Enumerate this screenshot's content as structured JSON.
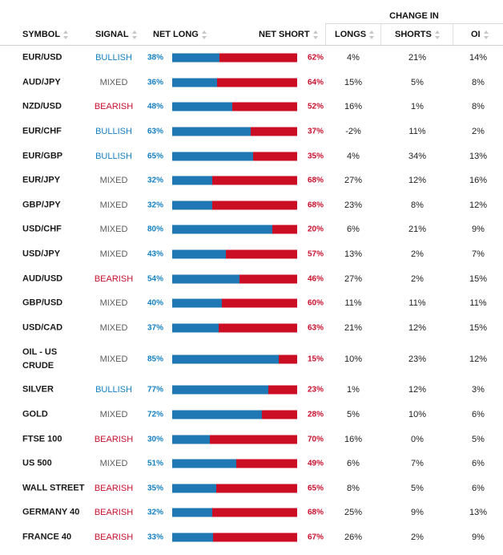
{
  "header": {
    "change_in": "CHANGE IN",
    "columns": {
      "symbol": "SYMBOL",
      "signal": "SIGNAL",
      "net_long": "NET LONG",
      "net_short": "NET SHORT",
      "longs": "LONGS",
      "shorts": "SHORTS",
      "oi": "OI"
    }
  },
  "colors": {
    "bullish": "#1580c2",
    "bearish": "#c8102e",
    "long_bar": "#1f78b4",
    "short_bar": "#cc0e25"
  },
  "rows": [
    {
      "symbol": "EUR/USD",
      "signal": "BULLISH",
      "net_long": "38%",
      "net_short": "62%",
      "long_fraction": 0.38,
      "longs": "4%",
      "shorts": "21%",
      "oi": "14%"
    },
    {
      "symbol": "AUD/JPY",
      "signal": "MIXED",
      "net_long": "36%",
      "net_short": "64%",
      "long_fraction": 0.36,
      "longs": "15%",
      "shorts": "5%",
      "oi": "8%"
    },
    {
      "symbol": "NZD/USD",
      "signal": "BEARISH",
      "net_long": "48%",
      "net_short": "52%",
      "long_fraction": 0.48,
      "longs": "16%",
      "shorts": "1%",
      "oi": "8%"
    },
    {
      "symbol": "EUR/CHF",
      "signal": "BULLISH",
      "net_long": "63%",
      "net_short": "37%",
      "long_fraction": 0.63,
      "longs": "-2%",
      "shorts": "11%",
      "oi": "2%"
    },
    {
      "symbol": "EUR/GBP",
      "signal": "BULLISH",
      "net_long": "65%",
      "net_short": "35%",
      "long_fraction": 0.65,
      "longs": "4%",
      "shorts": "34%",
      "oi": "13%"
    },
    {
      "symbol": "EUR/JPY",
      "signal": "MIXED",
      "net_long": "32%",
      "net_short": "68%",
      "long_fraction": 0.32,
      "longs": "27%",
      "shorts": "12%",
      "oi": "16%"
    },
    {
      "symbol": "GBP/JPY",
      "signal": "MIXED",
      "net_long": "32%",
      "net_short": "68%",
      "long_fraction": 0.32,
      "longs": "23%",
      "shorts": "8%",
      "oi": "12%"
    },
    {
      "symbol": "USD/CHF",
      "signal": "MIXED",
      "net_long": "80%",
      "net_short": "20%",
      "long_fraction": 0.8,
      "longs": "6%",
      "shorts": "21%",
      "oi": "9%"
    },
    {
      "symbol": "USD/JPY",
      "signal": "MIXED",
      "net_long": "43%",
      "net_short": "57%",
      "long_fraction": 0.43,
      "longs": "13%",
      "shorts": "2%",
      "oi": "7%"
    },
    {
      "symbol": "AUD/USD",
      "signal": "BEARISH",
      "net_long": "54%",
      "net_short": "46%",
      "long_fraction": 0.54,
      "longs": "27%",
      "shorts": "2%",
      "oi": "15%"
    },
    {
      "symbol": "GBP/USD",
      "signal": "MIXED",
      "net_long": "40%",
      "net_short": "60%",
      "long_fraction": 0.4,
      "longs": "11%",
      "shorts": "11%",
      "oi": "11%"
    },
    {
      "symbol": "USD/CAD",
      "signal": "MIXED",
      "net_long": "37%",
      "net_short": "63%",
      "long_fraction": 0.37,
      "longs": "21%",
      "shorts": "12%",
      "oi": "15%"
    },
    {
      "symbol": "OIL - US CRUDE",
      "signal": "MIXED",
      "net_long": "85%",
      "net_short": "15%",
      "long_fraction": 0.85,
      "longs": "10%",
      "shorts": "23%",
      "oi": "12%"
    },
    {
      "symbol": "SILVER",
      "signal": "BULLISH",
      "net_long": "77%",
      "net_short": "23%",
      "long_fraction": 0.77,
      "longs": "1%",
      "shorts": "12%",
      "oi": "3%"
    },
    {
      "symbol": "GOLD",
      "signal": "MIXED",
      "net_long": "72%",
      "net_short": "28%",
      "long_fraction": 0.72,
      "longs": "5%",
      "shorts": "10%",
      "oi": "6%"
    },
    {
      "symbol": "FTSE 100",
      "signal": "BEARISH",
      "net_long": "30%",
      "net_short": "70%",
      "long_fraction": 0.3,
      "longs": "16%",
      "shorts": "0%",
      "oi": "5%"
    },
    {
      "symbol": "US 500",
      "signal": "MIXED",
      "net_long": "51%",
      "net_short": "49%",
      "long_fraction": 0.51,
      "longs": "6%",
      "shorts": "7%",
      "oi": "6%"
    },
    {
      "symbol": "WALL STREET",
      "signal": "BEARISH",
      "net_long": "35%",
      "net_short": "65%",
      "long_fraction": 0.35,
      "longs": "8%",
      "shorts": "5%",
      "oi": "6%"
    },
    {
      "symbol": "GERMANY 40",
      "signal": "BEARISH",
      "net_long": "32%",
      "net_short": "68%",
      "long_fraction": 0.32,
      "longs": "25%",
      "shorts": "9%",
      "oi": "13%"
    },
    {
      "symbol": "FRANCE 40",
      "signal": "BEARISH",
      "net_long": "33%",
      "net_short": "67%",
      "long_fraction": 0.33,
      "longs": "26%",
      "shorts": "2%",
      "oi": "9%"
    }
  ]
}
